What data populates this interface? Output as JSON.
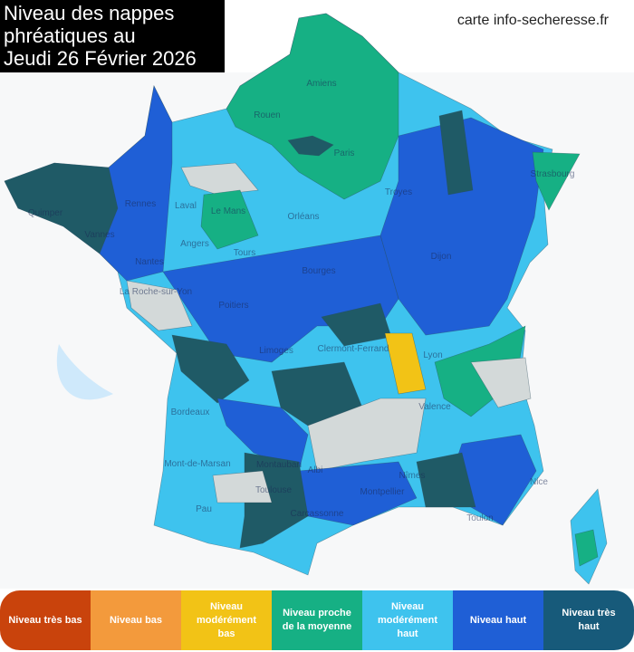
{
  "header": {
    "title": "Niveau des nappes\nphréatiques au\nJeudi 26 Février 2026",
    "source": "carte info-secheresse.fr"
  },
  "cities": [
    "Amiens",
    "Rouen",
    "Paris",
    "Rennes",
    "Laval",
    "Le Mans",
    "Angers",
    "Tours",
    "Nantes",
    "La Roche-sur-Yon",
    "Orléans",
    "Troyes",
    "Bourges",
    "Dijon",
    "Strasbourg",
    "Poitiers",
    "Limoges",
    "Clermont-Ferrand",
    "Lyon",
    "Bordeaux",
    "Valence",
    "Mont-de-Marsan",
    "Montauban",
    "Albi",
    "Toulouse",
    "Nîmes",
    "Montpellier",
    "Nice",
    "Pau",
    "Carcassonne",
    "Toulon",
    "Quimper",
    "Vannes"
  ],
  "legend": [
    {
      "label": "Niveau très bas",
      "color": "#c9430c"
    },
    {
      "label": "Niveau bas",
      "color": "#f39a3c"
    },
    {
      "label": "Niveau\nmodérément\nbas",
      "color": "#f2c316"
    },
    {
      "label": "Niveau proche\nde la moyenne",
      "color": "#16b084"
    },
    {
      "label": "Niveau\nmodérément\nhaut",
      "color": "#3ec3ee"
    },
    {
      "label": "Niveau haut",
      "color": "#1f5fd6"
    },
    {
      "label": "Niveau très\nhaut",
      "color": "#175a7a"
    }
  ]
}
